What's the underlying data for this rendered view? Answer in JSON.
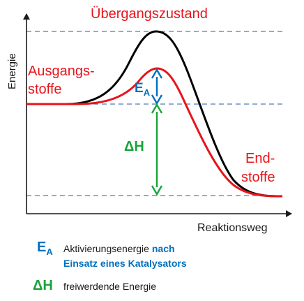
{
  "axes": {
    "y_label": "Energie",
    "x_label": "Reaktionsweg"
  },
  "labels": {
    "transition_state": "Übergangszustand",
    "reactants_line1": "Ausgangs-",
    "reactants_line2": "stoffe",
    "products_line1": "End-",
    "products_line2": "stoffe",
    "ea_main": "E",
    "ea_sub": "A",
    "dh_symbol": "ΔH"
  },
  "legend": {
    "ea_main": "E",
    "ea_sub": "A",
    "ea_text_plain": "Aktivierungsenergie ",
    "ea_text_bold_1": "nach",
    "ea_text_bold_2": "Einsatz eines Katalysators",
    "dh_symbol": "ΔH",
    "dh_text": "freiwerdende Energie"
  },
  "colors": {
    "uncatalyzed_curve": "#000000",
    "catalyzed_curve": "#e8141b",
    "activation_arrow": "#0070c0",
    "enthalpy_arrow": "#1aa33a",
    "guide_lines": "#4a7ebb"
  }
}
